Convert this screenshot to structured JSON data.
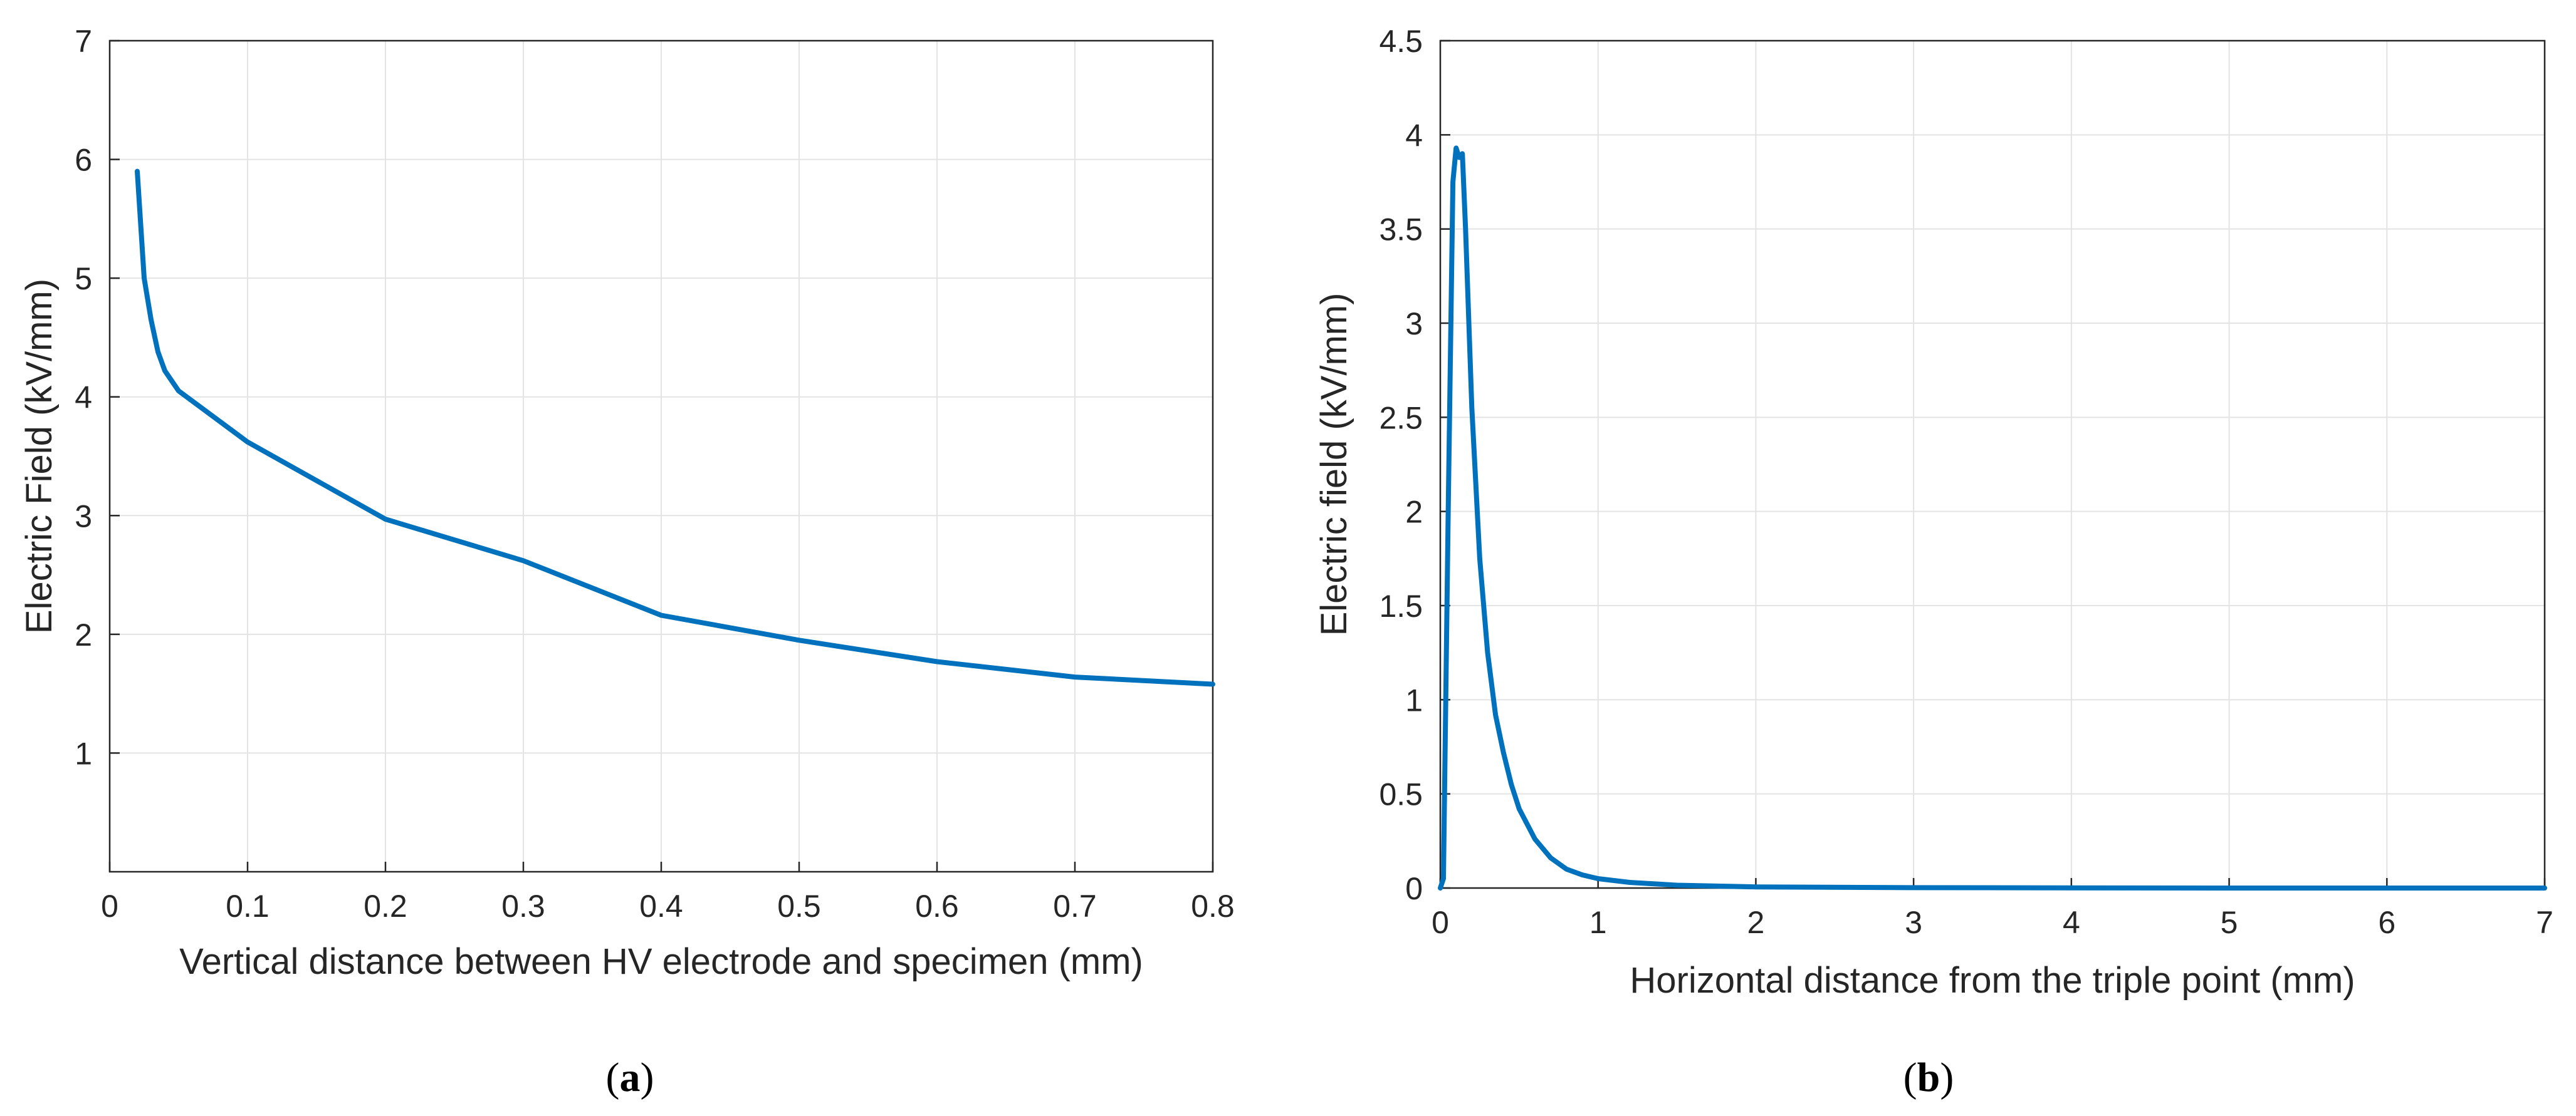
{
  "chart_data": [
    {
      "type": "line",
      "panel": "a",
      "title": "",
      "xlabel": "Vertical distance between HV electrode and specimen (mm)",
      "ylabel": "Electric Field (kV/mm)",
      "xlim": [
        0,
        0.8
      ],
      "ylim": [
        0,
        7
      ],
      "xticks": [
        0,
        0.1,
        0.2,
        0.3,
        0.4,
        0.5,
        0.6,
        0.7,
        0.8
      ],
      "xtick_labels": [
        "0",
        "0.1",
        "0.2",
        "0.3",
        "0.4",
        "0.5",
        "0.6",
        "0.7",
        "0.8"
      ],
      "yticks": [
        1,
        2,
        3,
        4,
        5,
        6,
        7
      ],
      "ytick_labels": [
        "1",
        "2",
        "3",
        "4",
        "5",
        "6",
        "7"
      ],
      "grid": true,
      "series": [
        {
          "name": "Electric Field",
          "color": "#0072BD",
          "x": [
            0.02,
            0.025,
            0.03,
            0.035,
            0.04,
            0.05,
            0.1,
            0.2,
            0.3,
            0.4,
            0.5,
            0.6,
            0.7,
            0.8
          ],
          "y": [
            5.9,
            5.0,
            4.65,
            4.38,
            4.22,
            4.05,
            3.62,
            2.97,
            2.62,
            2.16,
            1.95,
            1.77,
            1.64,
            1.58
          ]
        }
      ],
      "caption_label": "a"
    },
    {
      "type": "line",
      "panel": "b",
      "title": "",
      "xlabel": "Horizontal distance from the triple point (mm)",
      "ylabel": "Electric field (kV/mm)",
      "xlim": [
        0,
        7
      ],
      "ylim": [
        0,
        4.5
      ],
      "xticks": [
        0,
        1,
        2,
        3,
        4,
        5,
        6,
        7
      ],
      "xtick_labels": [
        "0",
        "1",
        "2",
        "3",
        "4",
        "5",
        "6",
        "7"
      ],
      "yticks": [
        0,
        0.5,
        1,
        1.5,
        2,
        2.5,
        3,
        3.5,
        4,
        4.5
      ],
      "ytick_labels": [
        "0",
        "0.5",
        "1",
        "1.5",
        "2",
        "2.5",
        "3",
        "3.5",
        "4",
        "4.5"
      ],
      "grid": true,
      "series": [
        {
          "name": "Electric field",
          "color": "#0072BD",
          "x": [
            0,
            0.02,
            0.05,
            0.08,
            0.1,
            0.12,
            0.14,
            0.16,
            0.2,
            0.25,
            0.3,
            0.35,
            0.4,
            0.45,
            0.5,
            0.6,
            0.7,
            0.8,
            0.9,
            1.0,
            1.2,
            1.5,
            2.0,
            3.0,
            4.0,
            5.0,
            6.0,
            7.0
          ],
          "y": [
            0,
            0.05,
            2.0,
            3.75,
            3.93,
            3.88,
            3.9,
            3.5,
            2.55,
            1.75,
            1.25,
            0.92,
            0.72,
            0.55,
            0.42,
            0.26,
            0.16,
            0.1,
            0.07,
            0.05,
            0.03,
            0.015,
            0.006,
            0.002,
            0.001,
            0.0,
            0.0,
            0.0
          ]
        }
      ],
      "caption_label": "b"
    }
  ]
}
